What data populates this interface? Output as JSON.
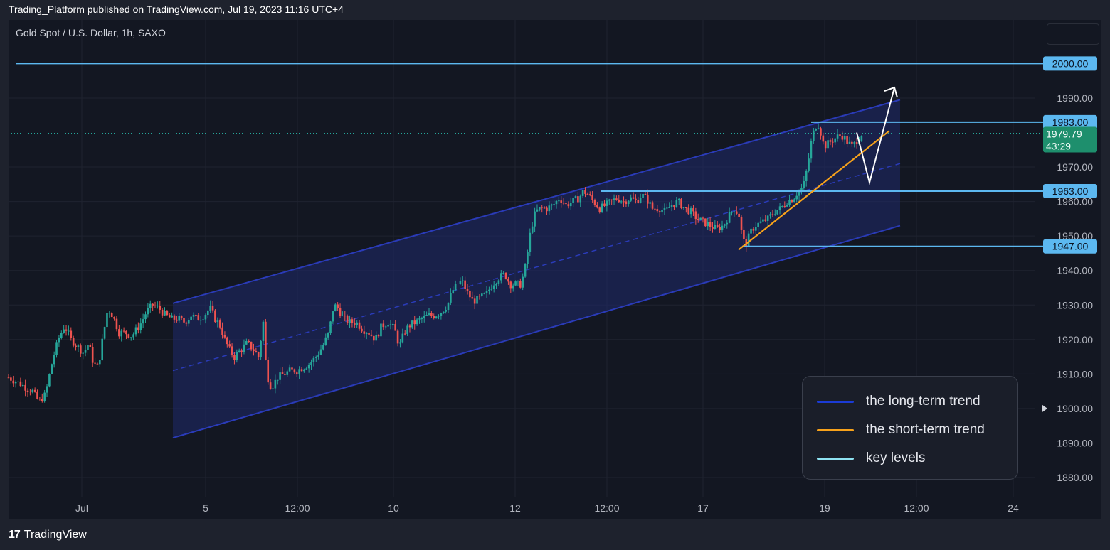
{
  "header": {
    "published_text": "Trading_Platform published on TradingView.com, Jul 19, 2023 11:16 UTC+4",
    "symbol_text": "Gold Spot / U.S. Dollar, 1h, SAXO"
  },
  "footer": {
    "logo_mark": "17",
    "logo_text": "TradingView"
  },
  "colors": {
    "background": "#131722",
    "frame": "#1e222d",
    "up_candle": "#26a69a",
    "down_candle": "#ef5350",
    "channel_line": "#2a3bb8",
    "channel_fill": "#1f2a6b",
    "short_trend": "#f7a21b",
    "key_level": "#5cb8f0",
    "price_tag": "#1e8f6d",
    "projection": "#ffffff"
  },
  "legend": {
    "items": [
      {
        "label": "the long-term trend",
        "color": "#1b3bd6"
      },
      {
        "label": "the short-term trend",
        "color": "#f7a21b"
      },
      {
        "label": "key levels",
        "color": "#8fe3f2"
      }
    ]
  },
  "chart_data": {
    "type": "candlestick",
    "symbol": "Gold Spot / U.S. Dollar",
    "timeframe": "1h",
    "exchange": "SAXO",
    "x_ticks": [
      "Jul",
      "5",
      "12:00",
      "10",
      "12",
      "12:00",
      "17",
      "19",
      "12:00",
      "24"
    ],
    "y_ticks": [
      1880,
      1890,
      1900,
      1910,
      1920,
      1930,
      1940,
      1950,
      1960,
      1970,
      1990
    ],
    "y_tick_labels": [
      "1880.00",
      "1890.00",
      "1900.00",
      "1910.00",
      "1920.00",
      "1930.00",
      "1940.00",
      "1950.00",
      "1960.00",
      "1970.00",
      "1990.00"
    ],
    "ylim": [
      1872,
      2010
    ],
    "grid": true,
    "current_price": {
      "value": 1979.79,
      "label": "1979.79",
      "countdown": "43:29"
    },
    "key_levels": [
      {
        "value": 2000.0,
        "label": "2000.00"
      },
      {
        "value": 1983.0,
        "label": "1983.00"
      },
      {
        "value": 1963.0,
        "label": "1963.00"
      },
      {
        "value": 1947.0,
        "label": "1947.00"
      }
    ],
    "close_path": [
      [
        0,
        1909
      ],
      [
        8,
        1908
      ],
      [
        16,
        1907
      ],
      [
        22,
        1906
      ],
      [
        30,
        1905
      ],
      [
        38,
        1902
      ],
      [
        46,
        1904
      ],
      [
        54,
        1913
      ],
      [
        62,
        1920
      ],
      [
        70,
        1924
      ],
      [
        78,
        1920
      ],
      [
        86,
        1918
      ],
      [
        94,
        1916
      ],
      [
        100,
        1919
      ],
      [
        106,
        1913
      ],
      [
        112,
        1912
      ],
      [
        118,
        1921
      ],
      [
        124,
        1929
      ],
      [
        130,
        1927
      ],
      [
        138,
        1922
      ],
      [
        146,
        1922
      ],
      [
        154,
        1921
      ],
      [
        160,
        1923
      ],
      [
        166,
        1925
      ],
      [
        172,
        1928
      ],
      [
        180,
        1930
      ],
      [
        188,
        1929
      ],
      [
        196,
        1927
      ],
      [
        204,
        1926
      ],
      [
        212,
        1926
      ],
      [
        220,
        1925
      ],
      [
        228,
        1927
      ],
      [
        236,
        1926
      ],
      [
        244,
        1927
      ],
      [
        252,
        1929
      ],
      [
        258,
        1926
      ],
      [
        264,
        1924
      ],
      [
        270,
        1920
      ],
      [
        276,
        1917
      ],
      [
        282,
        1915
      ],
      [
        290,
        1917
      ],
      [
        298,
        1919
      ],
      [
        306,
        1917
      ],
      [
        312,
        1915
      ],
      [
        318,
        1925
      ],
      [
        322,
        1910
      ],
      [
        328,
        1906
      ],
      [
        336,
        1909
      ],
      [
        344,
        1910
      ],
      [
        352,
        1911
      ],
      [
        360,
        1911
      ],
      [
        368,
        1912
      ],
      [
        376,
        1913
      ],
      [
        384,
        1915
      ],
      [
        392,
        1918
      ],
      [
        400,
        1922
      ],
      [
        406,
        1930
      ],
      [
        412,
        1929
      ],
      [
        418,
        1926
      ],
      [
        426,
        1925
      ],
      [
        434,
        1925
      ],
      [
        442,
        1923
      ],
      [
        450,
        1922
      ],
      [
        458,
        1920
      ],
      [
        466,
        1924
      ],
      [
        474,
        1925
      ],
      [
        482,
        1923
      ],
      [
        488,
        1918
      ],
      [
        494,
        1922
      ],
      [
        500,
        1924
      ],
      [
        508,
        1925
      ],
      [
        516,
        1926
      ],
      [
        524,
        1927
      ],
      [
        532,
        1927
      ],
      [
        540,
        1928
      ],
      [
        548,
        1930
      ],
      [
        554,
        1934
      ],
      [
        560,
        1936
      ],
      [
        566,
        1937
      ],
      [
        572,
        1934
      ],
      [
        580,
        1931
      ],
      [
        588,
        1932
      ],
      [
        596,
        1933
      ],
      [
        604,
        1936
      ],
      [
        612,
        1938
      ],
      [
        620,
        1939
      ],
      [
        626,
        1936
      ],
      [
        632,
        1936
      ],
      [
        640,
        1936
      ],
      [
        646,
        1942
      ],
      [
        652,
        1952
      ],
      [
        658,
        1957
      ],
      [
        664,
        1958
      ],
      [
        672,
        1958
      ],
      [
        680,
        1959
      ],
      [
        688,
        1961
      ],
      [
        696,
        1959
      ],
      [
        704,
        1960
      ],
      [
        712,
        1961
      ],
      [
        718,
        1963
      ],
      [
        724,
        1962
      ],
      [
        730,
        1960
      ],
      [
        738,
        1958
      ],
      [
        746,
        1959
      ],
      [
        752,
        1960
      ],
      [
        760,
        1961
      ],
      [
        768,
        1960
      ],
      [
        776,
        1961
      ],
      [
        784,
        1960
      ],
      [
        790,
        1962
      ],
      [
        796,
        1961
      ],
      [
        804,
        1958
      ],
      [
        812,
        1958
      ],
      [
        820,
        1957
      ],
      [
        828,
        1959
      ],
      [
        836,
        1960
      ],
      [
        844,
        1958
      ],
      [
        852,
        1957
      ],
      [
        860,
        1955
      ],
      [
        868,
        1954
      ],
      [
        876,
        1953
      ],
      [
        884,
        1952
      ],
      [
        892,
        1953
      ],
      [
        900,
        1956
      ],
      [
        906,
        1958
      ],
      [
        912,
        1956
      ],
      [
        916,
        1950
      ],
      [
        920,
        1947
      ],
      [
        926,
        1951
      ],
      [
        932,
        1953
      ],
      [
        940,
        1954
      ],
      [
        948,
        1955
      ],
      [
        956,
        1957
      ],
      [
        964,
        1958
      ],
      [
        972,
        1960
      ],
      [
        980,
        1961
      ],
      [
        986,
        1963
      ],
      [
        992,
        1964
      ],
      [
        998,
        1971
      ],
      [
        1002,
        1977
      ],
      [
        1006,
        1981
      ],
      [
        1010,
        1983
      ],
      [
        1014,
        1980
      ],
      [
        1018,
        1976
      ],
      [
        1024,
        1977
      ],
      [
        1030,
        1978
      ],
      [
        1036,
        1979
      ],
      [
        1042,
        1979
      ],
      [
        1048,
        1977
      ],
      [
        1054,
        1976
      ],
      [
        1060,
        1978
      ],
      [
        1066,
        1980
      ]
    ],
    "annotations": {
      "long_term_channel": {
        "upper": [
          [
            1930.5,
            1989.5
          ]
        ],
        "lower": [
          [
            1891.5,
            1953
          ]
        ],
        "mid": [
          [
            1911,
            1971
          ]
        ]
      },
      "short_term_trend": [
        [
          1946,
          1980.5
        ]
      ],
      "projection_path": [
        1980,
        1965.5,
        1991
      ]
    }
  }
}
